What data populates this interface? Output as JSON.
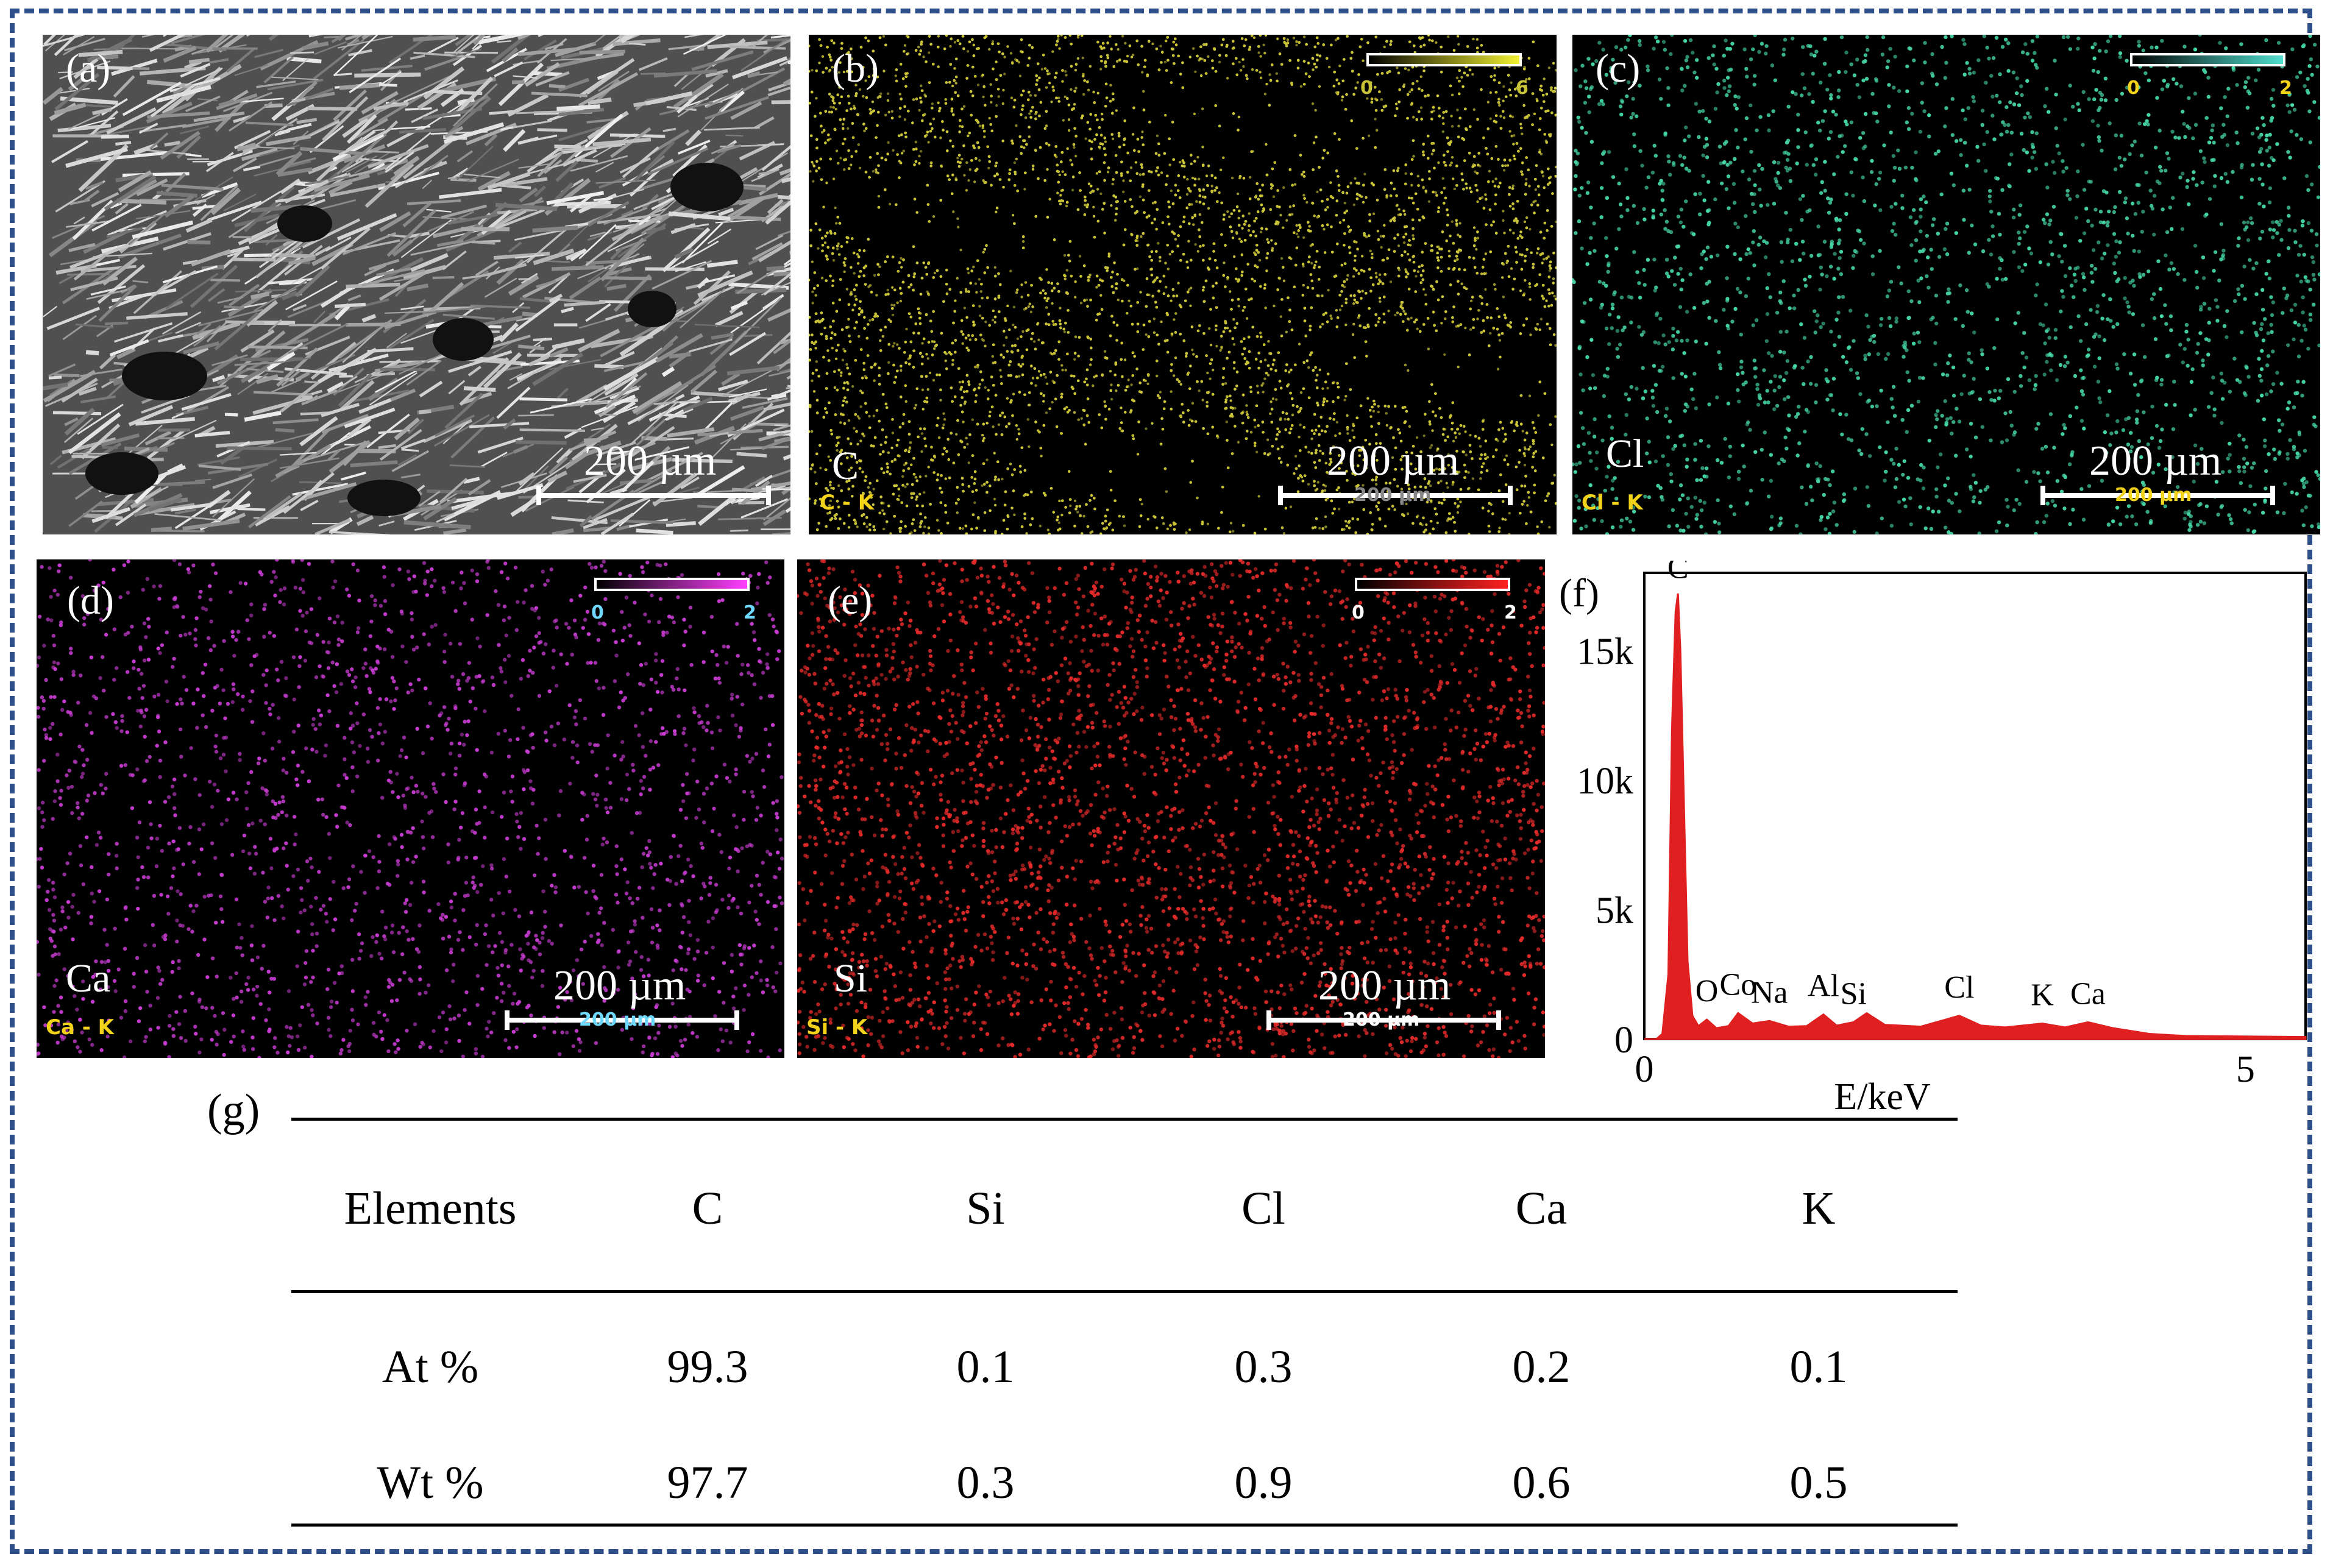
{
  "panels": {
    "a": {
      "label": "(a)",
      "scale": "200 µm"
    },
    "b": {
      "label": "(b)",
      "element": "C",
      "tag": "C - K",
      "scale": "200 µm",
      "scale_sub": "200 µm",
      "cbar_min": "0",
      "cbar_max": "6",
      "color": "#c9c338"
    },
    "c": {
      "label": "(c)",
      "element": "Cl",
      "tag": "Cl - K",
      "scale": "200 µm",
      "scale_sub": "200 µm",
      "cbar_min": "0",
      "cbar_max": "2",
      "color": "#46d7a6"
    },
    "d": {
      "label": "(d)",
      "element": "Ca",
      "tag": "Ca - K",
      "scale": "200 µm",
      "scale_sub": "200 µm",
      "cbar_min": "0",
      "cbar_max": "2",
      "color": "#c83cd2"
    },
    "e": {
      "label": "(e)",
      "element": "Si",
      "tag": "Si - K",
      "scale": "200 µm",
      "scale_sub": "200 µm",
      "cbar_min": "0",
      "cbar_max": "2",
      "color": "#e42a2a"
    },
    "f": {
      "label": "(f)"
    },
    "g": {
      "label": "(g)"
    }
  },
  "chart_data": {
    "type": "area",
    "xlabel": "E/keV",
    "xlim": [
      0,
      5.5
    ],
    "ylim": [
      0,
      18000
    ],
    "x_ticks": [
      "0",
      "5"
    ],
    "y_ticks": [
      "0",
      "5k",
      "10k",
      "15k"
    ],
    "series": [
      {
        "color": "#e02020",
        "x": [
          0.0,
          0.1,
          0.15,
          0.2,
          0.23,
          0.26,
          0.28,
          0.3,
          0.33,
          0.36,
          0.4,
          0.45,
          0.52,
          0.6,
          0.7,
          0.78,
          0.9,
          1.04,
          1.2,
          1.35,
          1.49,
          1.6,
          1.74,
          1.85,
          2.0,
          2.3,
          2.62,
          2.8,
          3.0,
          3.31,
          3.5,
          3.69,
          3.9,
          4.2,
          4.5,
          5.0,
          5.5
        ],
        "y": [
          0,
          0,
          200,
          2500,
          12000,
          16500,
          17200,
          15000,
          9000,
          3000,
          900,
          500,
          750,
          420,
          500,
          1000,
          600,
          700,
          480,
          500,
          950,
          520,
          650,
          1000,
          550,
          480,
          900,
          520,
          450,
          600,
          450,
          650,
          420,
          200,
          120,
          100,
          80
        ]
      }
    ],
    "peaks": [
      {
        "label": "C",
        "x": 0.28
      },
      {
        "label": "O",
        "x": 0.52
      },
      {
        "label": "Co",
        "x": 0.78
      },
      {
        "label": "Na",
        "x": 1.04
      },
      {
        "label": "Al",
        "x": 1.49
      },
      {
        "label": "Si",
        "x": 1.74
      },
      {
        "label": "Cl",
        "x": 2.62
      },
      {
        "label": "K",
        "x": 3.31
      },
      {
        "label": "Ca",
        "x": 3.69
      }
    ]
  },
  "table": {
    "headers": [
      "Elements",
      "C",
      "Si",
      "Cl",
      "Ca",
      "K"
    ],
    "rows": [
      [
        "At %",
        "99.3",
        "0.1",
        "0.3",
        "0.2",
        "0.1"
      ],
      [
        "Wt %",
        "97.7",
        "0.3",
        "0.9",
        "0.6",
        "0.5"
      ]
    ]
  }
}
